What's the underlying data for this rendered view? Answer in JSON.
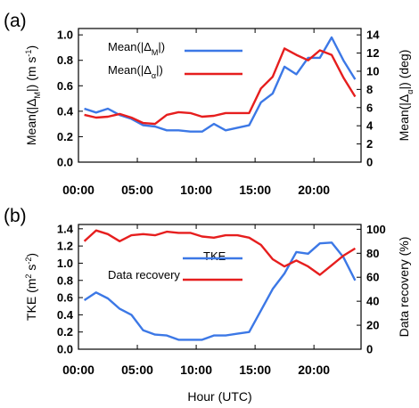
{
  "chart_data": [
    {
      "type": "line",
      "panel_label": "(a)",
      "x": [
        0.5,
        1.5,
        2.5,
        3.5,
        4.5,
        5.5,
        6.5,
        7.5,
        8.5,
        9.5,
        10.5,
        11.5,
        12.5,
        13.5,
        14.5,
        15.5,
        16.5,
        17.5,
        18.5,
        19.5,
        20.5,
        21.5,
        22.5,
        23.5
      ],
      "xticks": [
        "00:00",
        "05:00",
        "10:00",
        "15:00",
        "20:00"
      ],
      "xlim": [
        0,
        24
      ],
      "xlabel": "",
      "left_axis": {
        "label_parts": [
          "Mean(|Δ",
          "M",
          "|) (m s",
          "-1",
          ")"
        ],
        "ylim": [
          0,
          1.05
        ],
        "ticks": [
          "0.0",
          "0.2",
          "0.4",
          "0.6",
          "0.8",
          "1.0"
        ]
      },
      "right_axis": {
        "label_parts": [
          "Mean(|Δ",
          "α",
          "|) (deg)"
        ],
        "ylim": [
          0,
          14.7
        ],
        "ticks": [
          "0",
          "2",
          "4",
          "6",
          "8",
          "10",
          "12",
          "14"
        ]
      },
      "series": [
        {
          "name_parts": [
            "Mean(|Δ",
            "M",
            "|)"
          ],
          "color": "#3c78e6",
          "axis": "left",
          "values": [
            0.42,
            0.39,
            0.42,
            0.37,
            0.34,
            0.29,
            0.28,
            0.25,
            0.25,
            0.24,
            0.24,
            0.3,
            0.25,
            0.27,
            0.29,
            0.47,
            0.54,
            0.75,
            0.69,
            0.82,
            0.82,
            0.98,
            0.8,
            0.65
          ]
        },
        {
          "name_parts": [
            "Mean(|Δ",
            "α",
            "|)"
          ],
          "color": "#e61e1e",
          "axis": "right",
          "values": [
            5.2,
            4.9,
            5.0,
            5.3,
            4.9,
            4.3,
            4.2,
            5.2,
            5.5,
            5.4,
            5.0,
            5.1,
            5.4,
            5.4,
            5.4,
            8.1,
            9.4,
            12.5,
            11.8,
            11.2,
            12.3,
            11.8,
            9.3,
            7.2
          ]
        }
      ]
    },
    {
      "type": "line",
      "panel_label": "(b)",
      "x": [
        0.5,
        1.5,
        2.5,
        3.5,
        4.5,
        5.5,
        6.5,
        7.5,
        8.5,
        9.5,
        10.5,
        11.5,
        12.5,
        13.5,
        14.5,
        15.5,
        16.5,
        17.5,
        18.5,
        19.5,
        20.5,
        21.5,
        22.5,
        23.5
      ],
      "xticks": [
        "00:00",
        "05:00",
        "10:00",
        "15:00",
        "20:00"
      ],
      "xlim": [
        0,
        24
      ],
      "xlabel": "Hour (UTC)",
      "left_axis": {
        "label_parts": [
          "TKE (m",
          "2",
          " s",
          "-2",
          ")"
        ],
        "ylim": [
          0,
          1.45
        ],
        "ticks": [
          "0.0",
          "0.2",
          "0.4",
          "0.6",
          "0.8",
          "1.0",
          "1.2",
          "1.4"
        ]
      },
      "right_axis": {
        "label_parts": [
          "Data recovery (%)"
        ],
        "ylim": [
          0,
          104
        ],
        "ticks": [
          "0",
          "20",
          "40",
          "60",
          "80",
          "100"
        ]
      },
      "series": [
        {
          "name_parts": [
            "TKE"
          ],
          "color": "#3c78e6",
          "axis": "left",
          "values": [
            0.57,
            0.66,
            0.59,
            0.47,
            0.4,
            0.22,
            0.17,
            0.16,
            0.11,
            0.11,
            0.11,
            0.16,
            0.16,
            0.18,
            0.2,
            0.45,
            0.7,
            0.88,
            1.13,
            1.11,
            1.23,
            1.24,
            1.07,
            0.8
          ]
        },
        {
          "name_parts": [
            "Data recovery"
          ],
          "color": "#e61e1e",
          "axis": "right",
          "values": [
            90,
            99,
            96,
            90,
            95,
            96,
            95,
            98,
            97,
            97,
            94,
            93,
            95,
            95,
            93,
            87,
            75,
            69,
            74,
            69,
            62,
            70,
            78,
            84
          ]
        }
      ]
    }
  ]
}
